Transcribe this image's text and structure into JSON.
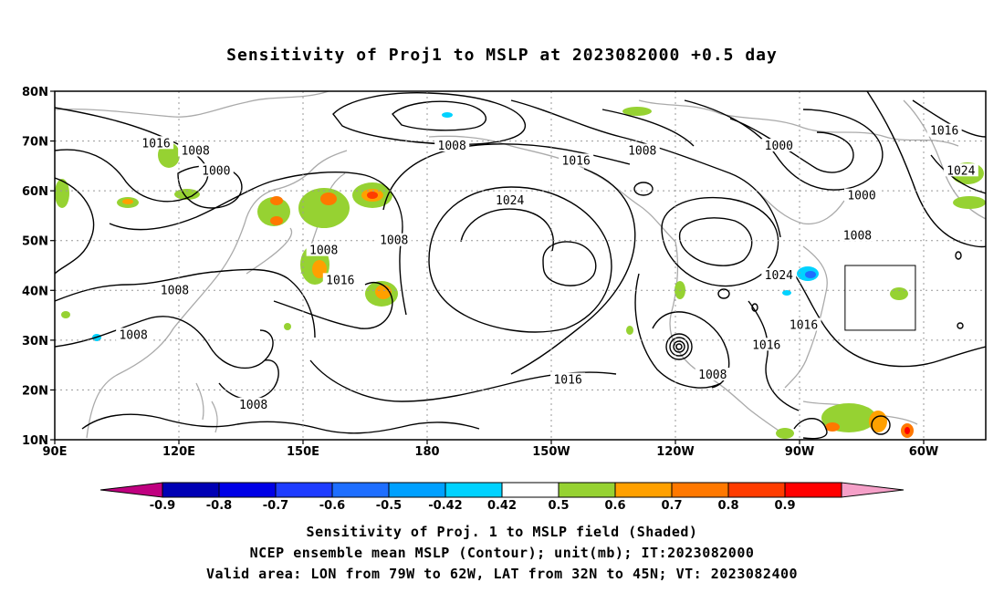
{
  "title": "Sensitivity of Proj1 to MSLP at 2023082000 +0.5 day",
  "map": {
    "lat_labels": [
      "80N",
      "70N",
      "60N",
      "50N",
      "40N",
      "30N",
      "20N",
      "10N"
    ],
    "lat_values": [
      80,
      70,
      60,
      50,
      40,
      30,
      20,
      10
    ],
    "lon_labels": [
      "90E",
      "120E",
      "150E",
      "180",
      "150W",
      "120W",
      "90W",
      "60W"
    ],
    "lon_values": [
      90,
      120,
      150,
      180,
      210,
      240,
      270,
      300
    ],
    "extent": {
      "lon_min": 90,
      "lon_max": 315,
      "lat_min": 10,
      "lat_max": 80
    },
    "valid_box": {
      "lon_min": 281,
      "lon_max": 298,
      "lat_min": 32,
      "lat_max": 45
    },
    "contour_labels": [
      {
        "text": "1016",
        "lon": 114.5,
        "lat": 69.5
      },
      {
        "text": "1008",
        "lon": 124,
        "lat": 68
      },
      {
        "text": "1000",
        "lon": 129,
        "lat": 64
      },
      {
        "text": "1008",
        "lon": 155,
        "lat": 48
      },
      {
        "text": "1016",
        "lon": 159,
        "lat": 42
      },
      {
        "text": "1008",
        "lon": 172,
        "lat": 50
      },
      {
        "text": "1008",
        "lon": 119,
        "lat": 40
      },
      {
        "text": "1008",
        "lon": 109,
        "lat": 31
      },
      {
        "text": "1008",
        "lon": 138,
        "lat": 17
      },
      {
        "text": "1008",
        "lon": 186,
        "lat": 69
      },
      {
        "text": "1016",
        "lon": 216,
        "lat": 66
      },
      {
        "text": "1008",
        "lon": 232,
        "lat": 68
      },
      {
        "text": "1024",
        "lon": 200,
        "lat": 58
      },
      {
        "text": "1016",
        "lon": 214,
        "lat": 22
      },
      {
        "text": "1000",
        "lon": 265,
        "lat": 69
      },
      {
        "text": "1016",
        "lon": 305,
        "lat": 72
      },
      {
        "text": "1024",
        "lon": 309,
        "lat": 64
      },
      {
        "text": "1000",
        "lon": 285,
        "lat": 59
      },
      {
        "text": "1008",
        "lon": 284,
        "lat": 51
      },
      {
        "text": "1024",
        "lon": 265,
        "lat": 43
      },
      {
        "text": "1016",
        "lon": 271,
        "lat": 33
      },
      {
        "text": "1016",
        "lon": 262,
        "lat": 29
      },
      {
        "text": "1008",
        "lon": 249,
        "lat": 23
      }
    ]
  },
  "colorbar": {
    "labels": [
      "-0.9",
      "-0.8",
      "-0.7",
      "-0.6",
      "-0.5",
      "-0.42",
      "0.42",
      "0.5",
      "0.6",
      "0.7",
      "0.8",
      "0.9"
    ],
    "colors": [
      "#c00080",
      "#0000b4",
      "#0000e6",
      "#1e3cff",
      "#1e6eff",
      "#00a0ff",
      "#00d2ff",
      "#ffffff",
      "#96d232",
      "#ffa000",
      "#ff7800",
      "#ff3c00",
      "#ff0000",
      "#f5a0c8"
    ]
  },
  "captions": [
    "Sensitivity of Proj. 1 to MSLP field (Shaded)",
    "NCEP ensemble mean MSLP (Contour); unit(mb); IT:2023082000",
    "Valid area: LON from 79W to 62W, LAT from 32N to 45N; VT: 2023082400"
  ],
  "colors": {
    "contour": "#000000",
    "coastline": "#aaaaaa",
    "grid": "#999999",
    "positive_shade": "#96d232",
    "mid_shade": "#ffa000",
    "high_shade": "#ff3c00",
    "negative_shade": "#00d2ff"
  }
}
